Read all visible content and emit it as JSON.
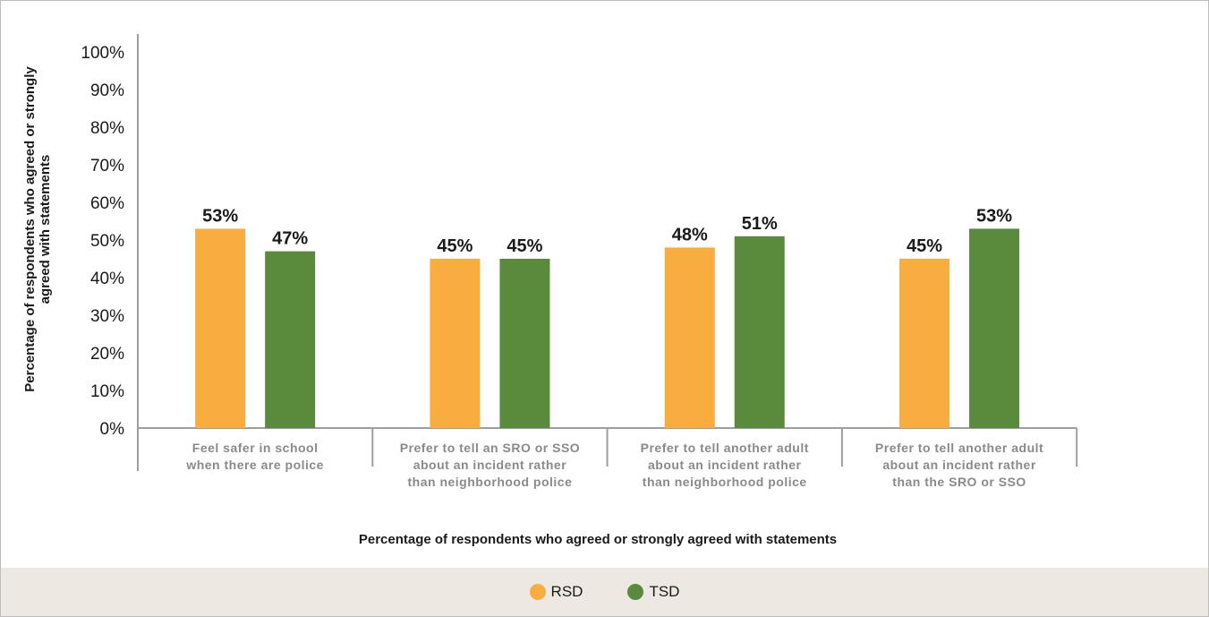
{
  "chart_data": {
    "type": "bar",
    "categories": [
      [
        "Feel safer in school",
        "when there are police"
      ],
      [
        "Prefer to tell an SRO or SSO",
        "about an incident rather",
        "than neighborhood police"
      ],
      [
        "Prefer to tell another adult",
        "about an incident rather",
        "than neighborhood police"
      ],
      [
        "Prefer to tell another adult",
        "about an incident rather",
        "than the SRO or SSO"
      ]
    ],
    "series": [
      {
        "name": "RSD",
        "color": "#f9ad3e",
        "values": [
          53,
          45,
          48,
          45
        ]
      },
      {
        "name": "TSD",
        "color": "#5a8a3c",
        "values": [
          47,
          45,
          51,
          53
        ]
      }
    ],
    "value_suffix": "%",
    "xlabel": "Percentage of respondents who agreed or strongly agreed with statements",
    "ylabel": [
      "Percentage of respondents who agreed or strongly",
      "agreed with statements"
    ],
    "ylim": [
      0,
      100
    ],
    "yticks": [
      "0%",
      "10%",
      "20%",
      "30%",
      "40%",
      "50%",
      "60%",
      "70%",
      "80%",
      "90%",
      "100%"
    ],
    "grid": false,
    "legend_position": "bottom"
  }
}
